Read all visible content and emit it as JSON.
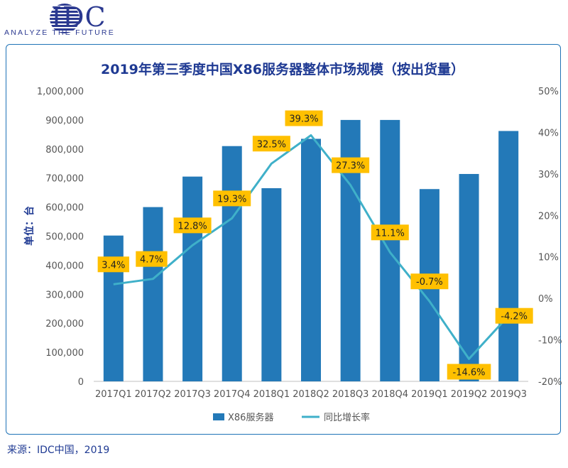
{
  "logo": {
    "text": "IDC",
    "tagline": "ANALYZE THE FUTURE"
  },
  "source": "来源：IDC中国，2019",
  "chart_data": {
    "type": "bar",
    "title": "2019年第三季度中国X86服务器整体市场规模（按出货量）",
    "ylabel": "单位：台",
    "categories": [
      "2017Q1",
      "2017Q2",
      "2017Q3",
      "2017Q4",
      "2018Q1",
      "2018Q2",
      "2018Q3",
      "2018Q4",
      "2019Q1",
      "2019Q2",
      "2019Q3"
    ],
    "series": [
      {
        "name": "X86服务器",
        "type": "bar",
        "axis": "left",
        "values": [
          502000,
          600000,
          705000,
          810000,
          665000,
          835000,
          900000,
          900000,
          662000,
          714000,
          862000
        ]
      },
      {
        "name": "同比增长率",
        "type": "line",
        "axis": "right",
        "values": [
          3.4,
          4.7,
          12.8,
          19.3,
          32.5,
          39.3,
          27.3,
          11.1,
          -0.7,
          -14.6,
          -4.2
        ],
        "labels": [
          "3.4%",
          "4.7%",
          "12.8%",
          "19.3%",
          "32.5%",
          "39.3%",
          "27.3%",
          "11.1%",
          "-0.7%",
          "-14.6%",
          "-4.2%"
        ]
      }
    ],
    "ylim": [
      0,
      1000000
    ],
    "y2lim": [
      -20,
      50
    ],
    "yticks": [
      "0",
      "100,000",
      "200,000",
      "300,000",
      "400,000",
      "500,000",
      "600,000",
      "700,000",
      "800,000",
      "900,000",
      "1,000,000"
    ],
    "y2ticks": [
      "-20%",
      "-10%",
      "0%",
      "10%",
      "20%",
      "30%",
      "40%",
      "50%"
    ],
    "legend_position": "bottom",
    "colors": {
      "bar": "#2379b8",
      "line": "#3fb0c9",
      "label_bg": "#ffc000",
      "title": "#1f3a93",
      "axis_text": "#555555"
    }
  }
}
